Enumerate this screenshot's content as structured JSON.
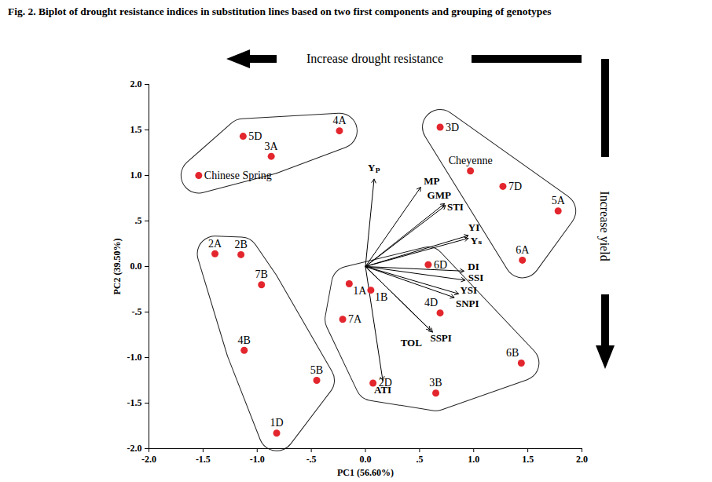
{
  "chart_data": {
    "type": "biplot",
    "title": "Fig. 2. Biplot of drought resistance indices in substitution lines based on two first components and grouping of genotypes",
    "x_label": "PC1 (56.60%)",
    "y_label": "PC2 (39.50%)",
    "annotations": [
      "Increase drought resistance",
      "Increase yield"
    ],
    "color": "#e3262d",
    "points": {
      "labels": [
        "Chinese Spring",
        "5D",
        "3A",
        "4A",
        "3D",
        "Cheyenne",
        "7D",
        "5A",
        "6A",
        "2A",
        "2B",
        "7B",
        "4B",
        "5B",
        "1D",
        "1A",
        "1B",
        "7A",
        "6D",
        "4D",
        "2D",
        "3B",
        "6B"
      ],
      "x": [
        -1.54,
        -1.13,
        -0.87,
        -0.24,
        0.69,
        0.97,
        1.27,
        1.78,
        1.45,
        -1.39,
        -1.15,
        -0.96,
        -1.12,
        -0.45,
        -0.82,
        -0.15,
        0.05,
        -0.21,
        0.58,
        0.69,
        0.07,
        0.65,
        1.44
      ],
      "y": [
        1.0,
        1.43,
        1.21,
        1.49,
        1.53,
        1.05,
        0.88,
        0.61,
        0.07,
        0.14,
        0.13,
        -0.2,
        -0.92,
        -1.25,
        -1.83,
        -0.19,
        -0.26,
        -0.58,
        0.02,
        -0.51,
        -1.28,
        -1.39,
        -1.06
      ]
    },
    "vectors": {
      "labels": [
        "Yₚ",
        "MP",
        "GMP",
        "STI",
        "YI",
        "Yₛ",
        "DI",
        "SSI",
        "YSI",
        "SNPI",
        "TOL",
        "SSPI",
        "ATI"
      ],
      "x": [
        0.08,
        0.51,
        0.73,
        0.74,
        0.95,
        0.95,
        0.91,
        0.92,
        0.86,
        0.82,
        0.6,
        0.62,
        0.16
      ],
      "y": [
        0.96,
        0.87,
        0.69,
        0.67,
        0.34,
        0.31,
        -0.05,
        -0.15,
        -0.3,
        -0.34,
        -0.7,
        -0.72,
        -1.25
      ]
    },
    "groups": [
      [
        "Chinese Spring",
        "5D",
        "3A",
        "4A"
      ],
      [
        "2A",
        "2B",
        "7B",
        "4B",
        "5B",
        "1D"
      ],
      [
        "1A",
        "1B",
        "7A",
        "6D",
        "4D",
        "2D",
        "3B",
        "6B"
      ],
      [
        "3D",
        "Cheyenne",
        "7D",
        "5A",
        "6A"
      ]
    ],
    "xlim": [
      -2,
      2
    ],
    "ylim": [
      -2,
      2
    ],
    "xticks": [
      {
        "value": -2,
        "label": "-2.0"
      },
      {
        "value": -1.5,
        "label": "-1.5"
      },
      {
        "value": -1,
        "label": "-1.0"
      },
      {
        "value": -0.5,
        "label": "-.5"
      },
      {
        "value": 0,
        "label": "0.0"
      },
      {
        "value": 0.5,
        "label": ".5"
      },
      {
        "value": 1,
        "label": "1.0"
      },
      {
        "value": 1.5,
        "label": "1.5"
      },
      {
        "value": 2,
        "label": "2.0"
      }
    ],
    "yticks": [
      {
        "value": -2,
        "label": "-2.0"
      },
      {
        "value": -1.5,
        "label": "-1.5"
      },
      {
        "value": -1,
        "label": "-1.0"
      },
      {
        "value": -0.5,
        "label": "-.5"
      },
      {
        "value": 0,
        "label": "0.0"
      },
      {
        "value": 0.5,
        "label": ".5"
      },
      {
        "value": 1,
        "label": "1.0"
      },
      {
        "value": 1.5,
        "label": "1.5"
      },
      {
        "value": 2,
        "label": "2.0"
      }
    ],
    "grid": false
  }
}
